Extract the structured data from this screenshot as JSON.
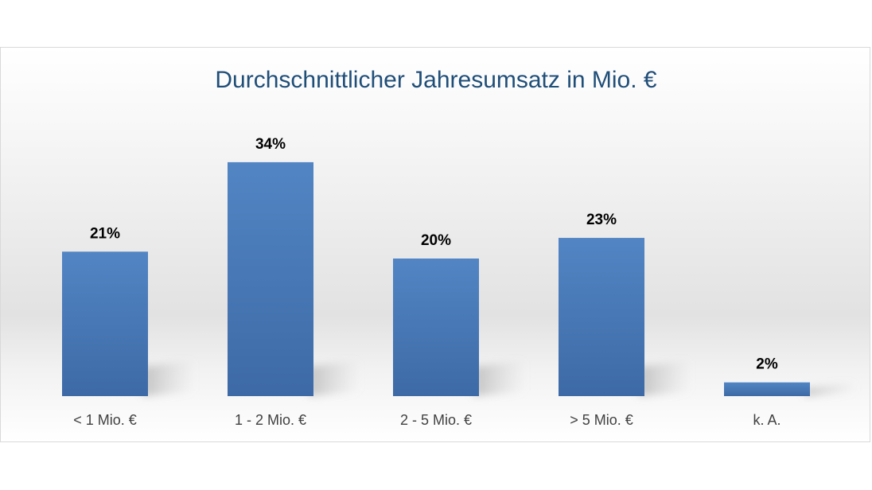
{
  "chart_data": {
    "type": "bar",
    "title": "Durchschnittlicher Jahresumsatz in Mio. €",
    "xlabel": "",
    "ylabel": "",
    "categories": [
      "< 1 Mio. €",
      "1 - 2 Mio. €",
      "2 - 5 Mio. €",
      "> 5 Mio. €",
      "k. A."
    ],
    "values": [
      21,
      34,
      20,
      23,
      2
    ],
    "data_labels": [
      "21%",
      "34%",
      "20%",
      "23%",
      "2%"
    ],
    "unit": "%",
    "ylim": [
      0,
      40
    ],
    "grid": false,
    "legend": "none",
    "bar_color": "#4f81bd",
    "bar_color_dark": "#3b679f",
    "title_color": "#1f4e79"
  }
}
